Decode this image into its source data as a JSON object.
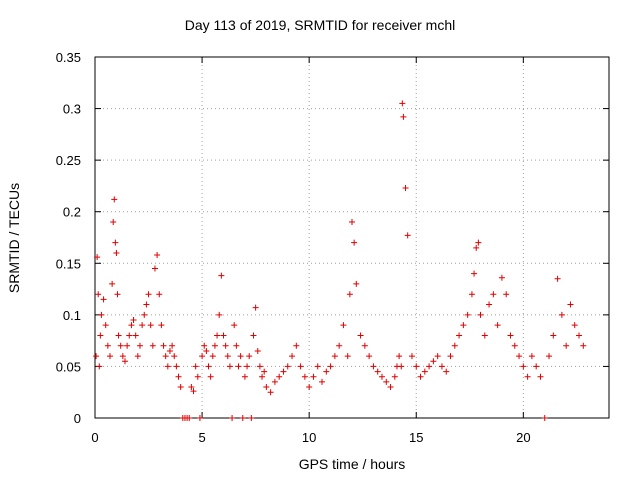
{
  "chart_data": {
    "type": "scatter",
    "title": "Day 113 of 2019, SRMTID for receiver mchl",
    "xlabel": "GPS time / hours",
    "ylabel": "SRMTID / TECUs",
    "xlim": [
      0,
      24
    ],
    "ylim": [
      0,
      0.35
    ],
    "xticks": [
      0,
      5,
      10,
      15,
      20
    ],
    "xtick_labels": [
      "0",
      "5",
      "10",
      "15",
      "20"
    ],
    "yticks": [
      0,
      0.05,
      0.1,
      0.15,
      0.2,
      0.25,
      0.3,
      0.35
    ],
    "ytick_labels": [
      "0",
      "0.05",
      "0.1",
      "0.15",
      "0.2",
      "0.25",
      "0.3",
      "0.35"
    ],
    "grid": true,
    "marker": "+",
    "color": "#e00000",
    "series": [
      {
        "name": "SRMTID",
        "x": [
          0.05,
          0.1,
          0.15,
          0.2,
          0.25,
          0.3,
          0.4,
          0.5,
          0.6,
          0.7,
          0.8,
          0.85,
          0.9,
          0.95,
          1.0,
          1.05,
          1.1,
          1.2,
          1.3,
          1.4,
          1.5,
          1.6,
          1.7,
          1.8,
          1.9,
          2.0,
          2.1,
          2.2,
          2.3,
          2.4,
          2.5,
          2.6,
          2.7,
          2.8,
          2.9,
          3.0,
          3.1,
          3.2,
          3.3,
          3.4,
          3.5,
          3.6,
          3.7,
          3.8,
          3.9,
          4.0,
          4.1,
          4.2,
          4.3,
          4.4,
          4.5,
          4.6,
          4.7,
          4.8,
          4.9,
          5.0,
          5.1,
          5.2,
          5.3,
          5.4,
          5.5,
          5.6,
          5.7,
          5.8,
          5.9,
          6.0,
          6.1,
          6.2,
          6.3,
          6.4,
          6.5,
          6.6,
          6.7,
          6.8,
          6.9,
          7.0,
          7.1,
          7.2,
          7.3,
          7.4,
          7.5,
          7.6,
          7.7,
          7.8,
          7.9,
          8.0,
          8.2,
          8.4,
          8.6,
          8.8,
          9.0,
          9.2,
          9.4,
          9.6,
          9.8,
          10.0,
          10.2,
          10.4,
          10.6,
          10.8,
          11.0,
          11.2,
          11.4,
          11.6,
          11.8,
          11.9,
          12.0,
          12.1,
          12.2,
          12.4,
          12.6,
          12.8,
          13.0,
          13.2,
          13.4,
          13.6,
          13.8,
          14.0,
          14.1,
          14.2,
          14.3,
          14.35,
          14.4,
          14.5,
          14.6,
          14.8,
          15.0,
          15.2,
          15.4,
          15.6,
          15.8,
          16.0,
          16.2,
          16.4,
          16.6,
          16.8,
          17.0,
          17.2,
          17.4,
          17.6,
          17.7,
          17.8,
          17.9,
          18.0,
          18.2,
          18.4,
          18.6,
          18.8,
          19.0,
          19.2,
          19.4,
          19.6,
          19.8,
          20.0,
          20.2,
          20.4,
          20.6,
          20.8,
          21.0,
          21.2,
          21.4,
          21.6,
          21.8,
          22.0,
          22.2,
          22.4,
          22.6,
          22.8
        ],
        "y": [
          0.06,
          0.156,
          0.12,
          0.05,
          0.08,
          0.1,
          0.115,
          0.09,
          0.07,
          0.06,
          0.13,
          0.19,
          0.212,
          0.17,
          0.16,
          0.12,
          0.08,
          0.07,
          0.06,
          0.055,
          0.07,
          0.08,
          0.09,
          0.095,
          0.08,
          0.06,
          0.07,
          0.09,
          0.1,
          0.11,
          0.12,
          0.09,
          0.07,
          0.145,
          0.158,
          0.12,
          0.09,
          0.07,
          0.06,
          0.05,
          0.065,
          0.07,
          0.06,
          0.05,
          0.04,
          0.03,
          0.0,
          0.0,
          0.0,
          0.0,
          0.03,
          0.026,
          0.05,
          0.04,
          0.0,
          0.06,
          0.07,
          0.065,
          0.05,
          0.04,
          0.06,
          0.07,
          0.08,
          0.1,
          0.138,
          0.08,
          0.07,
          0.06,
          0.05,
          0.0,
          0.09,
          0.07,
          0.05,
          0.06,
          0.0,
          0.04,
          0.05,
          0.06,
          0.0,
          0.08,
          0.107,
          0.065,
          0.05,
          0.04,
          0.045,
          0.03,
          0.025,
          0.035,
          0.04,
          0.045,
          0.05,
          0.06,
          0.07,
          0.05,
          0.04,
          0.03,
          0.04,
          0.05,
          0.035,
          0.045,
          0.05,
          0.06,
          0.07,
          0.09,
          0.06,
          0.12,
          0.19,
          0.17,
          0.13,
          0.08,
          0.07,
          0.06,
          0.05,
          0.045,
          0.04,
          0.035,
          0.03,
          0.04,
          0.05,
          0.06,
          0.05,
          0.305,
          0.292,
          0.223,
          0.177,
          0.06,
          0.05,
          0.04,
          0.045,
          0.05,
          0.055,
          0.06,
          0.05,
          0.045,
          0.06,
          0.07,
          0.08,
          0.09,
          0.1,
          0.12,
          0.14,
          0.165,
          0.17,
          0.1,
          0.08,
          0.11,
          0.12,
          0.09,
          0.136,
          0.12,
          0.08,
          0.07,
          0.06,
          0.05,
          0.04,
          0.06,
          0.05,
          0.04,
          0.0,
          0.06,
          0.08,
          0.135,
          0.1,
          0.07,
          0.11,
          0.09,
          0.08,
          0.07
        ]
      }
    ]
  }
}
